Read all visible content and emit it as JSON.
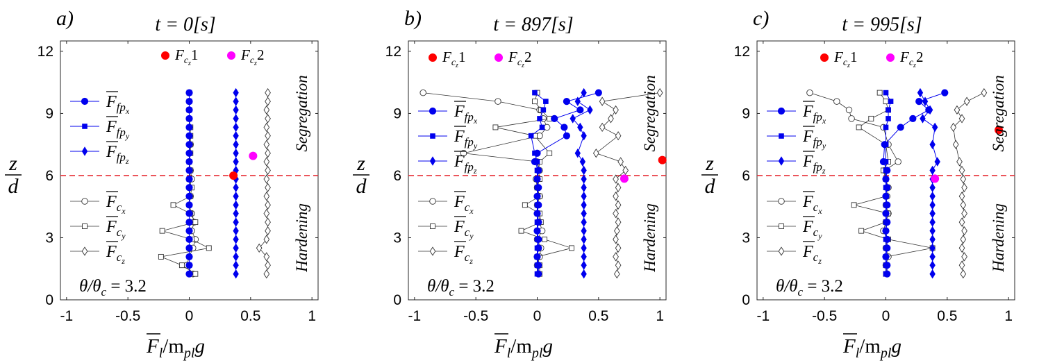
{
  "figure": {
    "panels": [
      {
        "letter": "a)",
        "time": "t = 0[s]"
      },
      {
        "letter": "b)",
        "time": "t = 897[s]"
      },
      {
        "letter": "c)",
        "time": "t = 995[s]"
      }
    ],
    "y_axis_label": "z/d",
    "x_axis_label": "F̄l/mpl g",
    "theta_label": "θ/θc = 3.2",
    "zone_upper": "Segregation",
    "zone_lower": "Hardening",
    "legend_marker_labels": [
      "F̄fp_x",
      "F̄fp_y",
      "F̄fp_z",
      "F̄c_x",
      "F̄c_y",
      "F̄c_z"
    ],
    "legend_point_labels": [
      "Fcz 1",
      "Fcz 2"
    ]
  },
  "chart_data": [
    {
      "type": "line",
      "title": "t = 0[s]",
      "xlabel": "F̄l/mpl g",
      "ylabel": "z/d",
      "xlim": [
        -1.05,
        1.05
      ],
      "ylim": [
        0,
        12.5
      ],
      "xticks": [
        "-1",
        "-0.5",
        "0",
        "0.5",
        "1"
      ],
      "yticks": [
        "0",
        "3",
        "6",
        "9",
        "12"
      ],
      "threshold_line_z": 6,
      "z": [
        1.25,
        1.67,
        2.08,
        2.5,
        2.92,
        3.33,
        3.75,
        4.17,
        4.58,
        5.0,
        5.42,
        5.83,
        6.25,
        6.67,
        7.08,
        7.5,
        7.92,
        8.33,
        8.75,
        9.17,
        9.58,
        10.0
      ],
      "series": [
        {
          "name": "Ffp_x",
          "x": [
            0,
            0,
            0,
            0,
            0,
            0,
            0,
            0,
            0,
            0,
            0,
            0,
            0,
            0,
            0,
            0,
            0,
            0,
            0,
            0,
            0,
            0
          ]
        },
        {
          "name": "Ffp_y",
          "x": [
            0,
            0,
            0,
            0,
            0,
            0,
            0,
            0,
            0,
            0,
            0,
            0,
            0,
            0,
            0,
            0,
            0,
            0,
            0,
            0,
            0,
            0
          ]
        },
        {
          "name": "Ffp_z",
          "x": [
            0.38,
            0.38,
            0.38,
            0.38,
            0.38,
            0.38,
            0.38,
            0.38,
            0.38,
            0.38,
            0.38,
            0.38,
            0.38,
            0.38,
            0.38,
            0.38,
            0.38,
            0.38,
            0.38,
            0.38,
            0.38,
            0.38
          ]
        },
        {
          "name": "Fc_x",
          "x": [
            0.03,
            -0.02,
            0.0,
            0.03,
            0.05,
            0.02,
            0.04,
            0.02,
            0.0,
            0.01,
            0.0,
            0.02,
            0.01,
            0.0,
            0.0,
            0.01,
            0.0,
            0.0,
            0.0,
            0.0,
            0.0,
            0.0
          ]
        },
        {
          "name": "Fc_y",
          "x": [
            0.05,
            -0.06,
            -0.23,
            0.16,
            0.02,
            -0.22,
            0.05,
            0.01,
            -0.13,
            0.01,
            0.02,
            0.0,
            0.01,
            0.0,
            0.01,
            0.01,
            0.01,
            0.01,
            0.0,
            0.0,
            0.0,
            0.0
          ]
        },
        {
          "name": "Fc_z",
          "x": [
            0.63,
            0.64,
            0.63,
            0.57,
            0.63,
            0.64,
            0.64,
            0.63,
            0.64,
            0.63,
            0.64,
            0.63,
            0.64,
            0.63,
            0.64,
            0.63,
            0.64,
            0.63,
            0.64,
            0.63,
            0.64,
            0.64
          ]
        }
      ],
      "points": [
        {
          "name": "Fcz 1",
          "x": 0.36,
          "z": 6.0,
          "color": "#ff0000"
        },
        {
          "name": "Fcz 2",
          "x": 0.52,
          "z": 6.95,
          "color": "#ff00ff"
        }
      ]
    },
    {
      "type": "line",
      "title": "t = 897[s]",
      "xlabel": "F̄l/mpl g",
      "ylabel": "z/d",
      "xlim": [
        -1.05,
        1.05
      ],
      "ylim": [
        0,
        12.5
      ],
      "xticks": [
        "-1",
        "-0.5",
        "0",
        "0.5",
        "1"
      ],
      "yticks": [
        "0",
        "3",
        "6",
        "9",
        "12"
      ],
      "threshold_line_z": 6,
      "z": [
        1.25,
        1.67,
        2.08,
        2.5,
        2.92,
        3.33,
        3.75,
        4.17,
        4.58,
        5.0,
        5.42,
        5.83,
        6.25,
        6.67,
        7.08,
        7.92,
        8.33,
        8.75,
        9.17,
        9.58,
        10.0
      ],
      "series": [
        {
          "name": "Ffp_x",
          "x": [
            0.01,
            0.01,
            0.0,
            0.01,
            0.01,
            0.0,
            0.01,
            0.0,
            0.01,
            0.0,
            0.01,
            0.0,
            0.01,
            -0.02,
            0.0,
            0.24,
            0.22,
            0.14,
            0.35,
            0.24,
            0.5
          ]
        },
        {
          "name": "Ffp_y",
          "x": [
            0.0,
            0.0,
            0.0,
            0.0,
            0.0,
            0.0,
            0.0,
            0.0,
            0.0,
            0.0,
            0.0,
            0.0,
            0.0,
            0.0,
            -0.02,
            -0.05,
            0.04,
            0.02,
            0.05,
            0.07,
            -0.02
          ]
        },
        {
          "name": "Ffp_z",
          "x": [
            0.38,
            0.38,
            0.38,
            0.38,
            0.38,
            0.38,
            0.38,
            0.38,
            0.38,
            0.38,
            0.38,
            0.38,
            0.38,
            0.37,
            0.33,
            0.38,
            0.35,
            0.29,
            0.43,
            0.33,
            0.38
          ]
        },
        {
          "name": "Fc_x",
          "x": [
            0.01,
            0.0,
            0.02,
            0.03,
            0.0,
            0.04,
            0.02,
            0.01,
            0.0,
            0.02,
            0.0,
            -0.01,
            0.02,
            0.0,
            -0.6,
            0.02,
            0.08,
            0.05,
            0.02,
            -0.32,
            -0.93
          ]
        },
        {
          "name": "Fc_y",
          "x": [
            0.02,
            0.02,
            0.0,
            0.28,
            0.06,
            -0.13,
            0.03,
            0.02,
            -0.1,
            0.02,
            0.0,
            0.02,
            0.01,
            0.02,
            0.1,
            -0.02,
            -0.34,
            0.1,
            0.03,
            -0.02,
            0.0
          ]
        },
        {
          "name": "Fc_z",
          "x": [
            0.65,
            0.66,
            0.64,
            0.66,
            0.64,
            0.65,
            0.66,
            0.64,
            0.66,
            0.64,
            0.66,
            0.64,
            0.72,
            0.68,
            0.48,
            0.66,
            0.53,
            0.6,
            0.64,
            0.53,
            1.0
          ]
        }
      ],
      "points": [
        {
          "name": "Fcz 1",
          "x": 1.02,
          "z": 6.75,
          "color": "#ff0000"
        },
        {
          "name": "Fcz 2",
          "x": 0.71,
          "z": 5.85,
          "color": "#ff00ff"
        }
      ]
    },
    {
      "type": "line",
      "title": "t = 995[s]",
      "xlabel": "F̄l/mpl g",
      "ylabel": "z/d",
      "xlim": [
        -1.05,
        1.05
      ],
      "ylim": [
        0,
        12.5
      ],
      "xticks": [
        "-1",
        "-0.5",
        "0",
        "0.5",
        "1"
      ],
      "yticks": [
        "0",
        "3",
        "6",
        "9",
        "12"
      ],
      "threshold_line_z": 6,
      "z": [
        1.25,
        1.67,
        2.08,
        2.5,
        2.92,
        3.33,
        3.75,
        4.17,
        4.58,
        5.0,
        5.42,
        5.83,
        6.25,
        6.67,
        7.5,
        8.33,
        8.75,
        9.17,
        9.58,
        10.0
      ],
      "series": [
        {
          "name": "Ffp_x",
          "x": [
            0.01,
            0.01,
            0.0,
            0.01,
            0.01,
            0.0,
            0.01,
            0.0,
            0.01,
            0.0,
            0.01,
            0.0,
            0.01,
            -0.02,
            -0.01,
            0.12,
            0.22,
            0.35,
            0.27,
            0.48
          ]
        },
        {
          "name": "Ffp_y",
          "x": [
            0.0,
            0.0,
            0.0,
            0.0,
            0.0,
            0.0,
            0.0,
            0.0,
            0.0,
            0.0,
            0.0,
            0.0,
            0.0,
            0.0,
            0.0,
            0.0,
            0.02,
            0.02,
            0.04,
            0.0
          ]
        },
        {
          "name": "Ffp_z",
          "x": [
            0.38,
            0.38,
            0.38,
            0.38,
            0.38,
            0.38,
            0.38,
            0.38,
            0.38,
            0.38,
            0.38,
            0.38,
            0.38,
            0.42,
            0.38,
            0.4,
            0.3,
            0.36,
            0.32,
            0.28
          ]
        },
        {
          "name": "Fc_x",
          "x": [
            0.01,
            0.0,
            0.02,
            0.0,
            0.01,
            -0.02,
            0.0,
            0.02,
            0.0,
            0.01,
            0.02,
            0.0,
            -0.01,
            0.1,
            0.02,
            -0.02,
            -0.28,
            -0.3,
            -0.4,
            -0.62
          ]
        },
        {
          "name": "Fc_y",
          "x": [
            0.0,
            0.0,
            0.0,
            0.38,
            0.02,
            -0.2,
            0.0,
            0.02,
            -0.26,
            0.0,
            0.01,
            0.0,
            -0.02,
            0.02,
            0.0,
            -0.22,
            -0.12,
            0.02,
            0.0,
            -0.05
          ]
        },
        {
          "name": "Fc_z",
          "x": [
            0.63,
            0.62,
            0.64,
            0.62,
            0.63,
            0.64,
            0.62,
            0.64,
            0.63,
            0.62,
            0.64,
            0.63,
            0.62,
            0.6,
            0.57,
            0.55,
            0.62,
            0.58,
            0.66,
            0.8
          ]
        }
      ],
      "points": [
        {
          "name": "Fcz 1",
          "x": 0.92,
          "z": 8.2,
          "color": "#ff0000"
        },
        {
          "name": "Fcz 2",
          "x": 0.4,
          "z": 5.85,
          "color": "#ff00ff"
        }
      ]
    }
  ]
}
